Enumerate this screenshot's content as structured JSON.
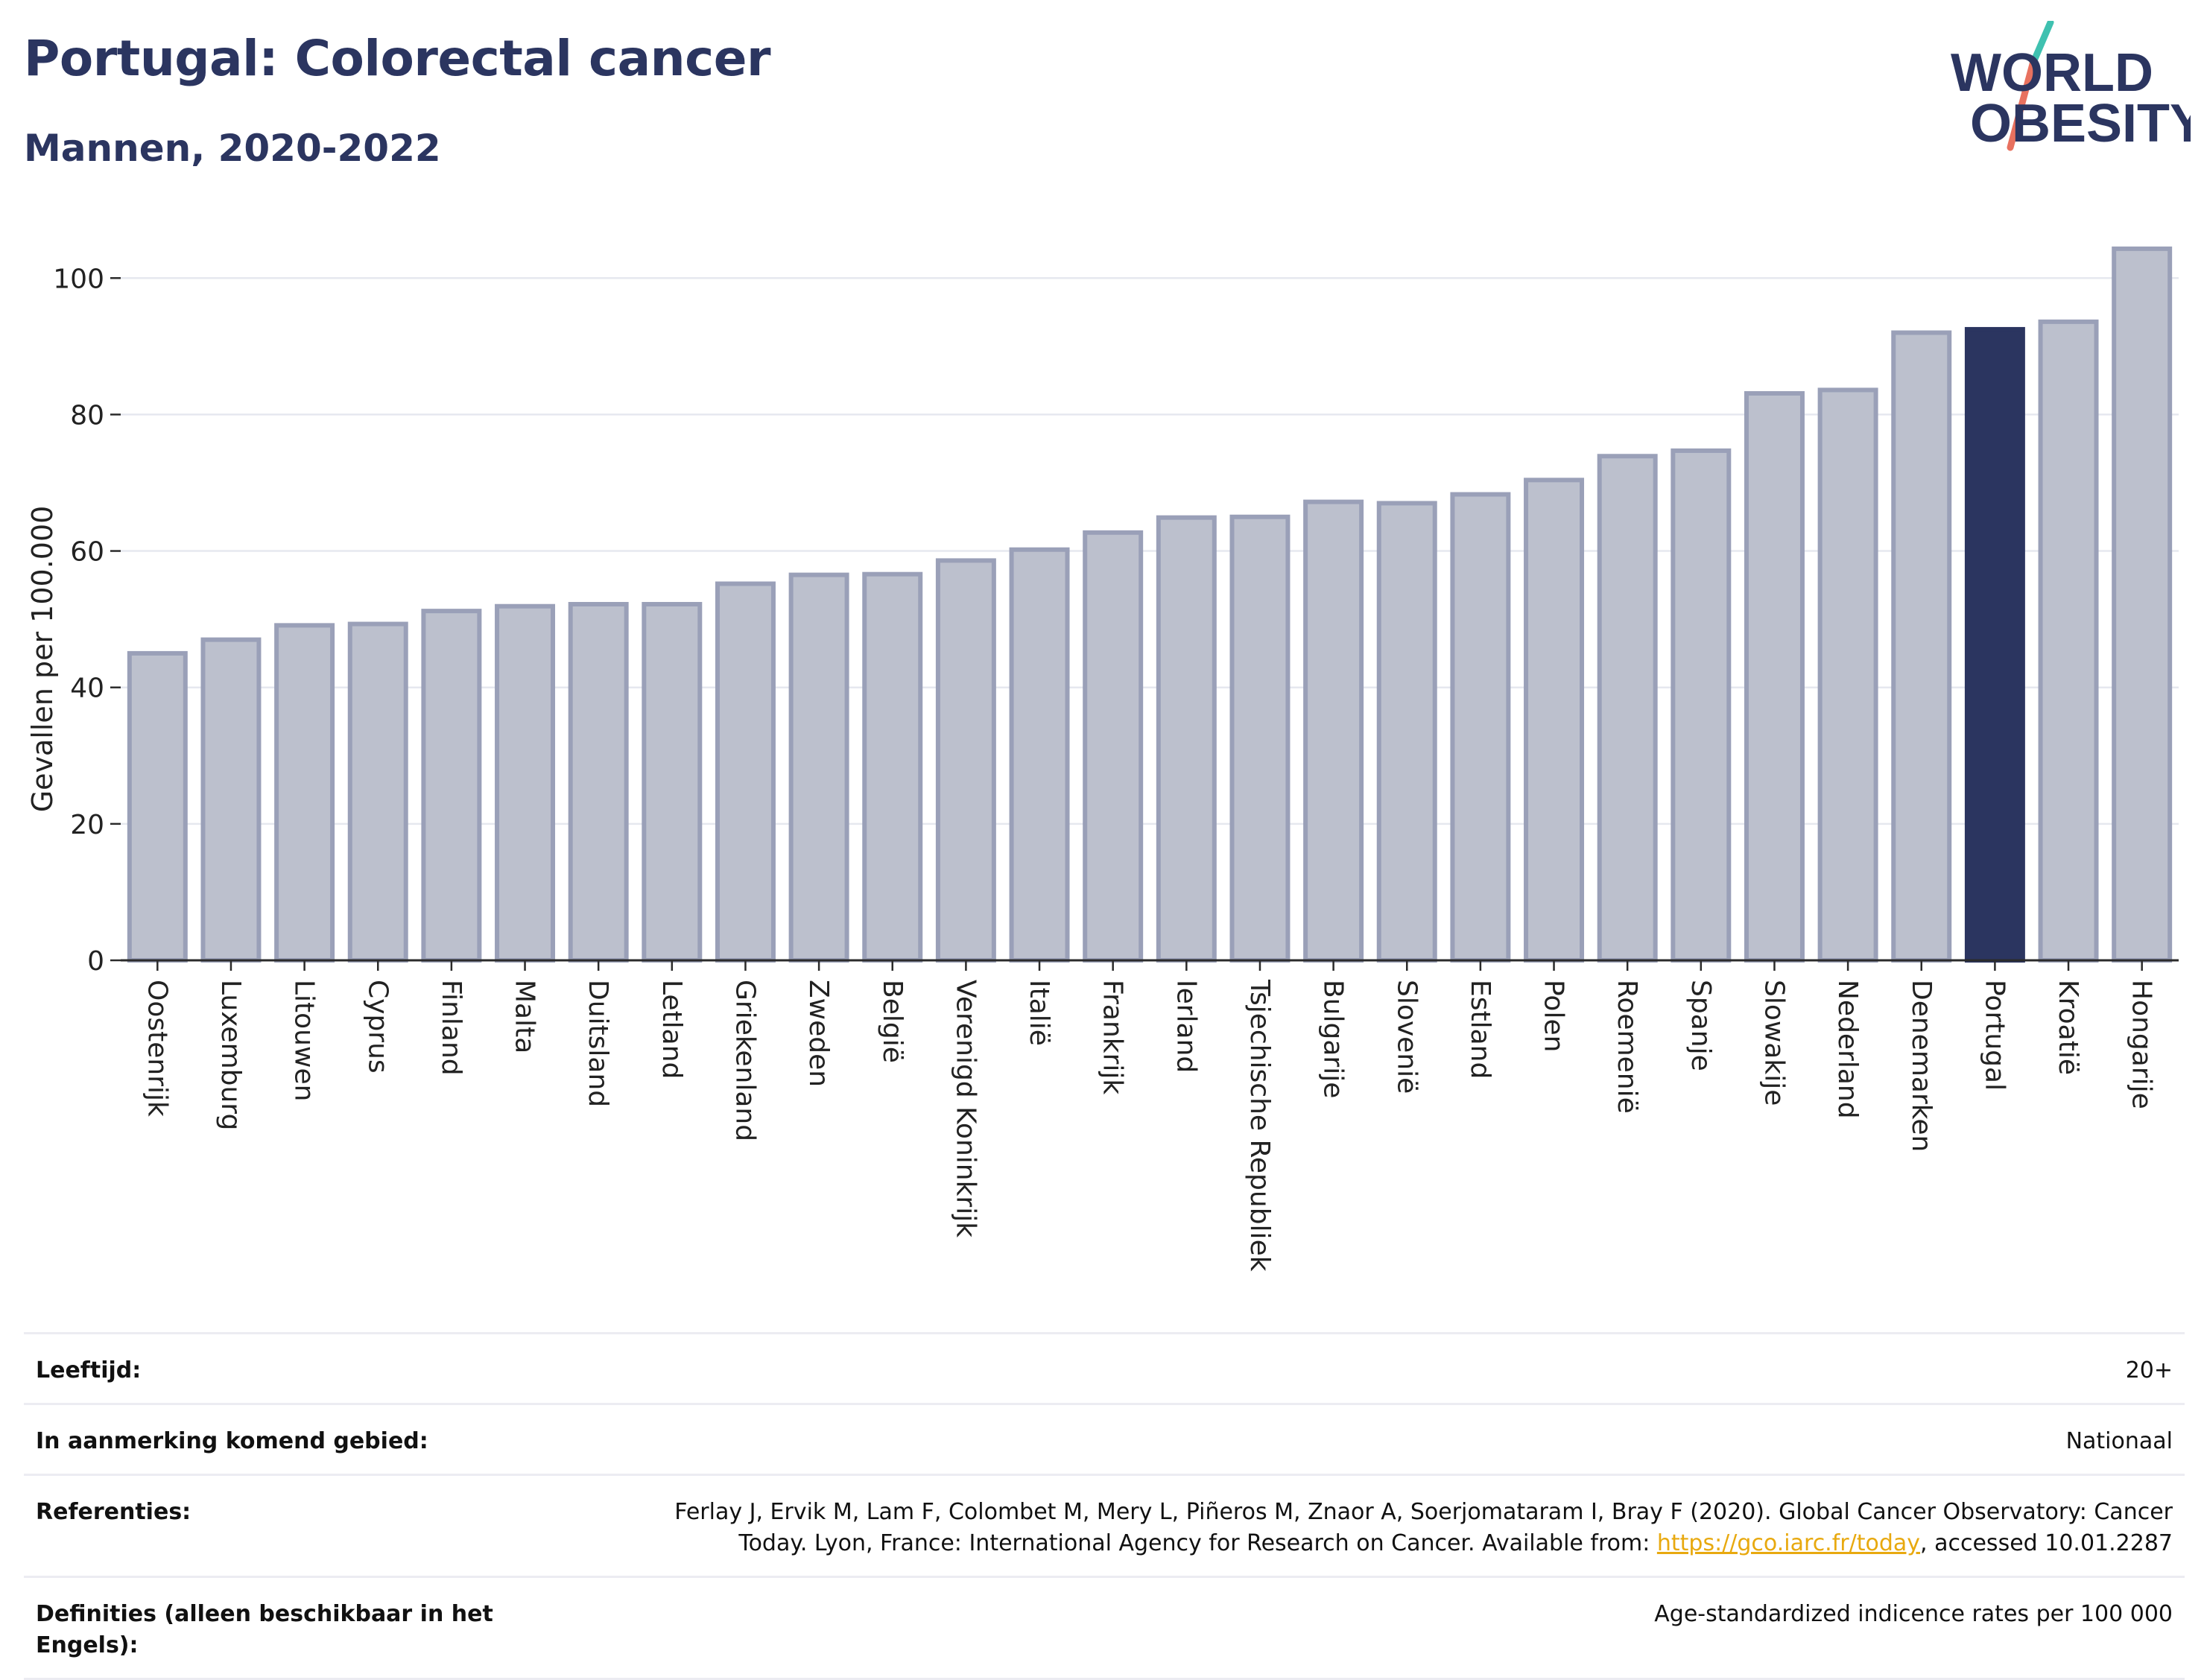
{
  "header": {
    "title": "Portugal: Colorectal cancer",
    "subtitle": "Mannen, 2020-2022"
  },
  "logo": {
    "line1": "WORLD",
    "line2": "OBESITY",
    "slash_colors": [
      "#3fc1b0",
      "#e8715f"
    ],
    "text_color": "#2b3560"
  },
  "colors": {
    "highlight": "#2b3560",
    "bar": "#bcc0cd",
    "bar_edge": "#9aa0b8",
    "grid": "#e6e8ef",
    "axis": "#2b2b2b"
  },
  "chart_data": {
    "type": "bar",
    "ylabel": "Gevallen per 100.000",
    "ylim": [
      0,
      108
    ],
    "yticks": [
      0,
      20,
      40,
      60,
      80,
      100
    ],
    "grid": "horizontal",
    "highlight": "Portugal",
    "categories": [
      "Oostenrijk",
      "Luxemburg",
      "Litouwen",
      "Cyprus",
      "Finland",
      "Malta",
      "Duitsland",
      "Letland",
      "Griekenland",
      "Zweden",
      "België",
      "Verenigd Koninkrijk",
      "Italië",
      "Frankrijk",
      "Ierland",
      "Tsjechische Republiek",
      "Bulgarije",
      "Slovenië",
      "Estland",
      "Polen",
      "Roemenië",
      "Spanje",
      "Slowakije",
      "Nederland",
      "Denemarken",
      "Portugal",
      "Kroatië",
      "Hongarije"
    ],
    "values": [
      45.0,
      47.0,
      49.1,
      49.3,
      51.2,
      51.9,
      52.2,
      52.2,
      55.2,
      56.5,
      56.6,
      58.6,
      60.2,
      62.7,
      64.9,
      65.0,
      67.2,
      67.0,
      68.3,
      70.4,
      73.9,
      74.7,
      83.1,
      83.6,
      92.0,
      92.5,
      93.6,
      104.3
    ]
  },
  "meta": {
    "rows": [
      {
        "label": "Leeftijd:",
        "value": "20+"
      },
      {
        "label": "In aanmerking komend gebied:",
        "value": "Nationaal"
      },
      {
        "label": "Referenties:",
        "value_pre": "Ferlay J, Ervik M, Lam F, Colombet M, Mery L, Piñeros M, Znaor A, Soerjomataram I, Bray F (2020). Global Cancer Observatory: Cancer Today. Lyon, France: International Agency for Research on Cancer. Available from: ",
        "link": "https://gco.iarc.fr/today",
        "value_post": ", accessed 10.01.2287"
      },
      {
        "label": "Definities (alleen beschikbaar in het Engels):",
        "value": "Age-standardized indicence rates per 100 000"
      }
    ]
  }
}
